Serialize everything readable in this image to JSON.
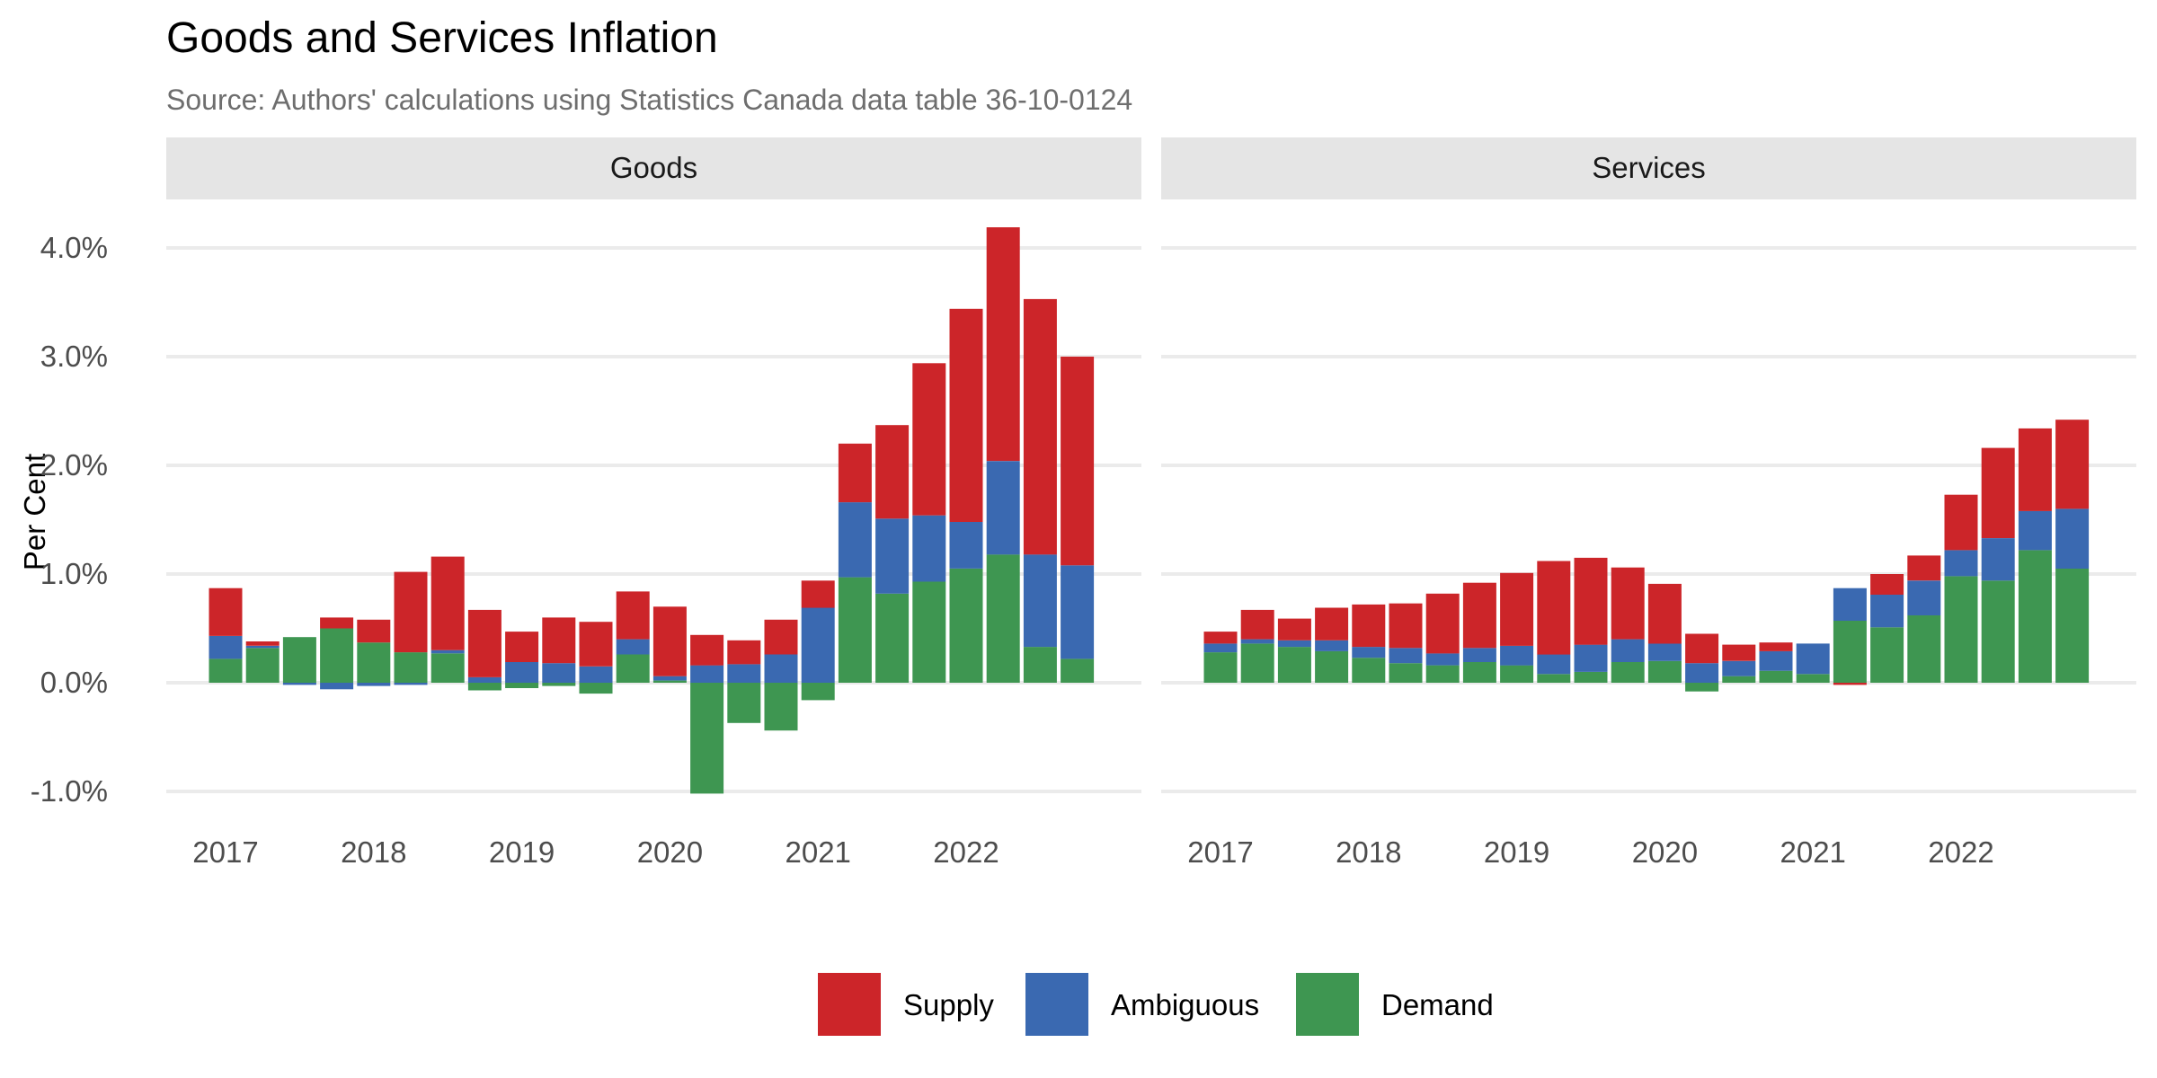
{
  "chart_data": {
    "type": "bar",
    "stacked": true,
    "title": "Goods and Services Inflation",
    "subtitle": "Source: Authors' calculations using Statistics Canada data table 36-10-0124",
    "ylabel": "Per Cent",
    "xlabel": "",
    "ylim": [
      -1.0,
      4.2
    ],
    "yticks": [
      "-1.0%",
      "0.0%",
      "1.0%",
      "2.0%",
      "3.0%",
      "4.0%"
    ],
    "ytick_values": [
      -1,
      0,
      1,
      2,
      3,
      4
    ],
    "xticks": [
      "2017",
      "2018",
      "2019",
      "2020",
      "2021",
      "2022"
    ],
    "x": [
      "2017 Q1",
      "2017 Q2",
      "2017 Q3",
      "2017 Q4",
      "2018 Q1",
      "2018 Q2",
      "2018 Q3",
      "2018 Q4",
      "2019 Q1",
      "2019 Q2",
      "2019 Q3",
      "2019 Q4",
      "2020 Q1",
      "2020 Q2",
      "2020 Q3",
      "2020 Q4",
      "2021 Q1",
      "2021 Q2",
      "2021 Q3",
      "2021 Q4",
      "2022 Q1",
      "2022 Q2",
      "2022 Q3",
      "2022 Q4"
    ],
    "grid": true,
    "legend_position": "bottom",
    "legend": [
      "Supply",
      "Ambiguous",
      "Demand"
    ],
    "colors": {
      "Supply": "#cc2529",
      "Ambiguous": "#3a69b1",
      "Demand": "#3e9651",
      "strip": "#e5e5e5",
      "grid": "#ebebeb"
    },
    "panels": [
      {
        "name": "Goods",
        "series": [
          {
            "name": "Demand",
            "values": [
              0.22,
              0.32,
              0.42,
              0.5,
              0.37,
              0.28,
              0.27,
              -0.07,
              -0.05,
              -0.03,
              -0.1,
              0.26,
              0.02,
              -1.02,
              -0.37,
              -0.44,
              -0.16,
              0.97,
              0.82,
              0.93,
              1.05,
              1.18,
              0.33,
              0.22
            ]
          },
          {
            "name": "Ambiguous",
            "values": [
              0.21,
              0.02,
              -0.02,
              -0.06,
              -0.03,
              -0.02,
              0.03,
              0.05,
              0.19,
              0.18,
              0.15,
              0.14,
              0.04,
              0.16,
              0.17,
              0.26,
              0.69,
              0.69,
              0.69,
              0.61,
              0.43,
              0.86,
              0.85,
              0.86
            ]
          },
          {
            "name": "Supply",
            "values": [
              0.44,
              0.04,
              0.0,
              0.1,
              0.21,
              0.74,
              0.86,
              0.62,
              0.28,
              0.42,
              0.41,
              0.44,
              0.64,
              0.28,
              0.22,
              0.32,
              0.25,
              0.54,
              0.86,
              1.4,
              1.96,
              2.15,
              2.35,
              1.92
            ]
          }
        ]
      },
      {
        "name": "Services",
        "series": [
          {
            "name": "Demand",
            "values": [
              0.28,
              0.36,
              0.33,
              0.29,
              0.23,
              0.18,
              0.16,
              0.19,
              0.16,
              0.08,
              0.1,
              0.19,
              0.2,
              -0.08,
              0.06,
              0.11,
              0.08,
              0.57,
              0.51,
              0.62,
              0.98,
              0.94,
              1.22,
              1.05
            ]
          },
          {
            "name": "Ambiguous",
            "values": [
              0.08,
              0.04,
              0.06,
              0.1,
              0.1,
              0.14,
              0.11,
              0.13,
              0.18,
              0.18,
              0.25,
              0.21,
              0.16,
              0.18,
              0.14,
              0.18,
              0.28,
              0.3,
              0.3,
              0.32,
              0.24,
              0.39,
              0.36,
              0.55
            ]
          },
          {
            "name": "Supply",
            "values": [
              0.11,
              0.27,
              0.2,
              0.3,
              0.39,
              0.41,
              0.55,
              0.6,
              0.67,
              0.86,
              0.8,
              0.66,
              0.55,
              0.27,
              0.15,
              0.08,
              0.0,
              -0.02,
              0.19,
              0.23,
              0.51,
              0.83,
              0.76,
              0.82
            ]
          }
        ]
      }
    ]
  }
}
